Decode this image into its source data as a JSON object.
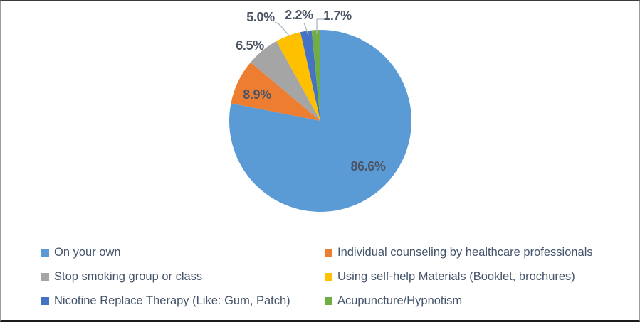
{
  "chart_data": {
    "type": "pie",
    "title": "",
    "values_unit": "%",
    "start_angle_deg": 0,
    "direction": "clockwise",
    "legend_position": "bottom",
    "legend_columns": 2,
    "slices": [
      {
        "label": "On your own",
        "value": 86.6,
        "data_label": "86.6%",
        "color": "#5B9BD5"
      },
      {
        "label": "Individual counseling by healthcare professionals",
        "value": 8.9,
        "data_label": "8.9%",
        "color": "#ED7D31"
      },
      {
        "label": "Stop smoking group or class",
        "value": 6.5,
        "data_label": "6.5%",
        "color": "#A5A5A5"
      },
      {
        "label": "Using self-help Materials (Booklet, brochures)",
        "value": 5.0,
        "data_label": "5.0%",
        "color": "#FFC000"
      },
      {
        "label": "Nicotine Replace Therapy (Like: Gum, Patch)",
        "value": 2.2,
        "data_label": "2.2%",
        "color": "#4472C4"
      },
      {
        "label": "Acupuncture/Hypnotism",
        "value": 1.7,
        "data_label": "1.7%",
        "color": "#70AD47"
      }
    ],
    "data_labels": [
      "86.6%",
      "8.9%",
      "6.5%",
      "5.0%",
      "2.2%",
      "1.7%"
    ],
    "label_text_color": "#4b5565",
    "leader_line_color": "#a9b6c4"
  }
}
